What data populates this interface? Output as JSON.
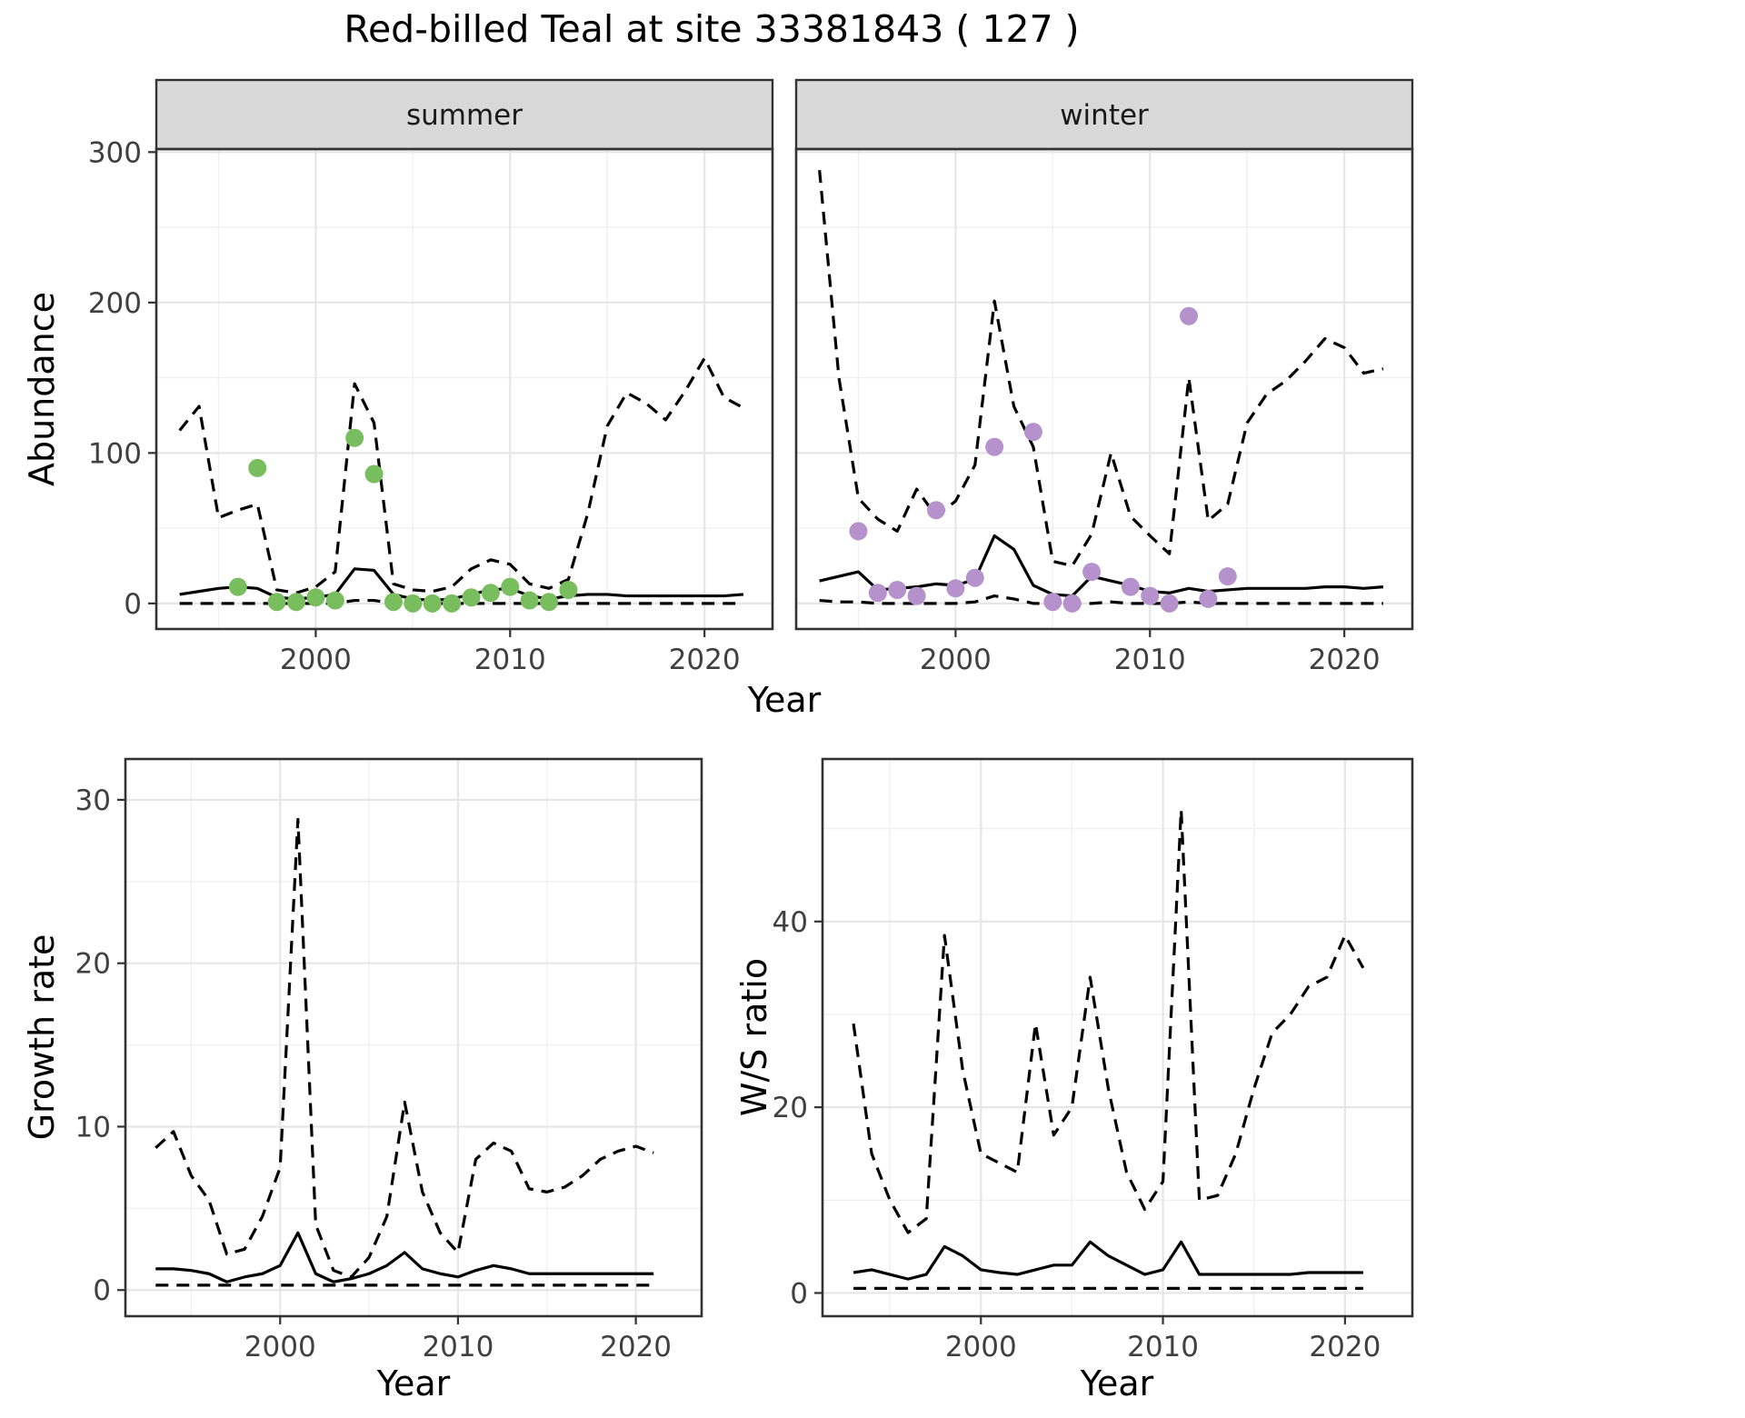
{
  "title": "Red-billed Teal at site 33381843 ( 127 )",
  "palette": {
    "summer_point": "#78bd5e",
    "winter_point": "#b592cb",
    "line": "#000000",
    "grid_major": "#e6e6e6",
    "grid_minor": "#f0f0f0",
    "strip_bg": "#d9d9d9",
    "panel_border": "#333333",
    "tick_text": "#404040"
  },
  "chart_data": [
    {
      "id": "abundance_by_season",
      "type": "line",
      "xlabel": "Year",
      "ylabel": "Abundance",
      "xticks": [
        2000,
        2010,
        2020
      ],
      "yticks": [
        0,
        100,
        200,
        300
      ],
      "xlim": [
        1991.8,
        2023.5
      ],
      "ylim": [
        -17,
        302
      ],
      "grid": true,
      "legend": "none",
      "years": [
        1993,
        1994,
        1995,
        1996,
        1997,
        1998,
        1999,
        2000,
        2001,
        2002,
        2003,
        2004,
        2005,
        2006,
        2007,
        2008,
        2009,
        2010,
        2011,
        2012,
        2013,
        2014,
        2015,
        2016,
        2017,
        2018,
        2019,
        2020,
        2021,
        2022
      ],
      "facets": [
        {
          "label": "summer",
          "point_color": "#78bd5e",
          "median": [
            6,
            8,
            10,
            11,
            10,
            4,
            3,
            4,
            6,
            23,
            22,
            6,
            3,
            2,
            3,
            6,
            9,
            10,
            5,
            3,
            5,
            6,
            6,
            5,
            5,
            5,
            5,
            5,
            5,
            6
          ],
          "upper_ci": [
            115,
            131,
            57,
            62,
            66,
            9,
            7,
            11,
            21,
            146,
            120,
            13,
            9,
            8,
            11,
            23,
            29,
            26,
            13,
            10,
            16,
            60,
            118,
            140,
            133,
            122,
            141,
            163,
            137,
            130
          ],
          "lower_ci": [
            0,
            0,
            0,
            0,
            0,
            0,
            0,
            0,
            0,
            2,
            2,
            0,
            0,
            0,
            0,
            0,
            0,
            0,
            0,
            0,
            0,
            0,
            0,
            0,
            0,
            0,
            0,
            0,
            0,
            0
          ],
          "observed": {
            "years": [
              1996,
              1997,
              1998,
              1999,
              2000,
              2001,
              2002,
              2003,
              2004,
              2005,
              2006,
              2007,
              2008,
              2009,
              2010,
              2011,
              2012,
              2013
            ],
            "values": [
              11,
              90,
              1,
              1,
              4,
              2,
              110,
              86,
              1,
              0,
              0,
              0,
              4,
              7,
              11,
              2,
              1,
              9
            ]
          }
        },
        {
          "label": "winter",
          "point_color": "#b592cb",
          "median": [
            15,
            18,
            21,
            9,
            10,
            11,
            13,
            12,
            16,
            45,
            36,
            12,
            6,
            5,
            18,
            15,
            12,
            8,
            7,
            10,
            8,
            9,
            10,
            10,
            10,
            10,
            11,
            11,
            10,
            11
          ],
          "upper_ci": [
            288,
            150,
            70,
            56,
            48,
            76,
            58,
            68,
            92,
            201,
            131,
            104,
            28,
            25,
            46,
            100,
            58,
            45,
            33,
            150,
            55,
            66,
            120,
            139,
            148,
            161,
            176,
            170,
            153,
            156
          ],
          "lower_ci": [
            2,
            1,
            1,
            0,
            0,
            0,
            0,
            0,
            1,
            5,
            3,
            0,
            0,
            0,
            0,
            1,
            0,
            0,
            0,
            1,
            0,
            0,
            0,
            0,
            0,
            0,
            0,
            0,
            0,
            0
          ],
          "observed": {
            "years": [
              1995,
              1996,
              1997,
              1998,
              1999,
              2000,
              2001,
              2002,
              2004,
              2005,
              2006,
              2007,
              2009,
              2010,
              2011,
              2012,
              2013,
              2014
            ],
            "values": [
              48,
              7,
              9,
              5,
              62,
              10,
              17,
              104,
              114,
              1,
              0,
              21,
              11,
              5,
              0,
              191,
              3,
              18
            ]
          }
        }
      ]
    },
    {
      "id": "growth_rate",
      "type": "line",
      "xlabel": "Year",
      "ylabel": "Growth rate",
      "xticks": [
        2000,
        2010,
        2020
      ],
      "yticks": [
        0,
        10,
        20,
        30
      ],
      "xlim": [
        1991.3,
        2023.7
      ],
      "ylim": [
        -1.6,
        32.5
      ],
      "grid": true,
      "years": [
        1993,
        1994,
        1995,
        1996,
        1997,
        1998,
        1999,
        2000,
        2001,
        2002,
        2003,
        2004,
        2005,
        2006,
        2007,
        2008,
        2009,
        2010,
        2011,
        2012,
        2013,
        2014,
        2015,
        2016,
        2017,
        2018,
        2019,
        2020,
        2021
      ],
      "median": [
        1.3,
        1.3,
        1.2,
        1.0,
        0.5,
        0.8,
        1.0,
        1.5,
        3.5,
        1.0,
        0.5,
        0.7,
        1.0,
        1.5,
        2.3,
        1.3,
        1.0,
        0.8,
        1.2,
        1.5,
        1.3,
        1.0,
        1.0,
        1.0,
        1.0,
        1.0,
        1.0,
        1.0,
        1.0
      ],
      "upper_ci": [
        8.7,
        9.7,
        7.0,
        5.5,
        2.2,
        2.5,
        4.5,
        7.5,
        28.8,
        4.0,
        1.2,
        0.8,
        2.0,
        4.5,
        11.5,
        6.0,
        3.5,
        2.3,
        8.0,
        9.0,
        8.5,
        6.2,
        6.0,
        6.3,
        7.0,
        8.0,
        8.5,
        8.8,
        8.4
      ],
      "lower_ci": [
        0.3,
        0.3,
        0.3,
        0.3,
        0.3,
        0.3,
        0.3,
        0.3,
        0.3,
        0.3,
        0.3,
        0.3,
        0.3,
        0.3,
        0.3,
        0.3,
        0.3,
        0.3,
        0.3,
        0.3,
        0.3,
        0.3,
        0.3,
        0.3,
        0.3,
        0.3,
        0.3,
        0.3,
        0.3
      ]
    },
    {
      "id": "winter_summer_ratio",
      "type": "line",
      "xlabel": "Year",
      "ylabel": "W/S ratio",
      "xticks": [
        2000,
        2010,
        2020
      ],
      "yticks": [
        0,
        20,
        40
      ],
      "xlim": [
        1991.3,
        2023.7
      ],
      "ylim": [
        -2.5,
        57.5
      ],
      "grid": true,
      "years": [
        1993,
        1994,
        1995,
        1996,
        1997,
        1998,
        1999,
        2000,
        2001,
        2002,
        2003,
        2004,
        2005,
        2006,
        2007,
        2008,
        2009,
        2010,
        2011,
        2012,
        2013,
        2014,
        2015,
        2016,
        2017,
        2018,
        2019,
        2020,
        2021
      ],
      "median": [
        2.2,
        2.5,
        2.0,
        1.5,
        2.0,
        5.0,
        4.0,
        2.5,
        2.2,
        2.0,
        2.5,
        3.0,
        3.0,
        5.5,
        4.0,
        3.0,
        2.0,
        2.5,
        5.5,
        2.0,
        2.0,
        2.0,
        2.0,
        2.0,
        2.0,
        2.2,
        2.2,
        2.2,
        2.2
      ],
      "upper_ci": [
        29,
        15,
        10,
        6.5,
        8,
        38.5,
        24,
        15,
        14,
        13,
        29,
        17,
        20,
        34,
        22,
        13,
        9,
        12,
        52,
        10,
        10.5,
        15,
        22,
        28,
        30,
        33,
        34,
        38.5,
        35
      ],
      "lower_ci": [
        0.5,
        0.5,
        0.5,
        0.5,
        0.5,
        0.5,
        0.5,
        0.5,
        0.5,
        0.5,
        0.5,
        0.5,
        0.5,
        0.5,
        0.5,
        0.5,
        0.5,
        0.5,
        0.5,
        0.5,
        0.5,
        0.5,
        0.5,
        0.5,
        0.5,
        0.5,
        0.5,
        0.5,
        0.5
      ]
    }
  ]
}
